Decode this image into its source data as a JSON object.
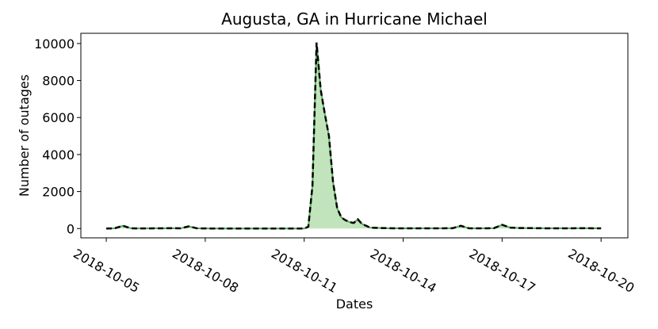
{
  "chart_data": {
    "type": "line",
    "title": "Augusta, GA in Hurricane Michael",
    "x_label": "Dates",
    "y_label": "Number of outages",
    "x": [
      "2018-10-05T00:00",
      "2018-10-05T06:00",
      "2018-10-05T12:00",
      "2018-10-05T18:00",
      "2018-10-06T00:00",
      "2018-10-06T12:00",
      "2018-10-07T00:00",
      "2018-10-07T06:00",
      "2018-10-07T12:00",
      "2018-10-07T18:00",
      "2018-10-08T00:00",
      "2018-10-08T12:00",
      "2018-10-09T00:00",
      "2018-10-09T12:00",
      "2018-10-10T00:00",
      "2018-10-10T12:00",
      "2018-10-11T00:00",
      "2018-10-11T03:00",
      "2018-10-11T06:00",
      "2018-10-11T09:00",
      "2018-10-11T12:00",
      "2018-10-11T15:00",
      "2018-10-11T18:00",
      "2018-10-11T21:00",
      "2018-10-12T00:00",
      "2018-10-12T03:00",
      "2018-10-12T06:00",
      "2018-10-12T09:00",
      "2018-10-12T12:00",
      "2018-10-12T15:00",
      "2018-10-12T18:00",
      "2018-10-12T21:00",
      "2018-10-13T00:00",
      "2018-10-13T12:00",
      "2018-10-14T00:00",
      "2018-10-14T12:00",
      "2018-10-15T00:00",
      "2018-10-15T12:00",
      "2018-10-15T18:00",
      "2018-10-16T00:00",
      "2018-10-16T12:00",
      "2018-10-16T18:00",
      "2018-10-17T00:00",
      "2018-10-17T06:00",
      "2018-10-17T12:00",
      "2018-10-18T00:00",
      "2018-10-18T12:00",
      "2018-10-19T00:00",
      "2018-10-19T12:00",
      "2018-10-20T00:00"
    ],
    "series": [
      {
        "color": "#000000",
        "fill_color": "#a8d8a0",
        "edge_color": "#4caf50",
        "values": [
          0,
          10,
          150,
          10,
          5,
          10,
          20,
          10,
          120,
          10,
          5,
          0,
          0,
          0,
          0,
          0,
          0,
          100,
          2300,
          10050,
          7500,
          6200,
          5000,
          2500,
          1100,
          600,
          450,
          350,
          300,
          500,
          250,
          150,
          50,
          20,
          10,
          10,
          10,
          20,
          150,
          10,
          10,
          20,
          200,
          50,
          30,
          20,
          10,
          10,
          20,
          10
        ]
      }
    ],
    "xlim": [
      "2018-10-04T05:30",
      "2018-10-20T19:30"
    ],
    "xticks": [
      "2018-10-05",
      "2018-10-08",
      "2018-10-11",
      "2018-10-14",
      "2018-10-17",
      "2018-10-20"
    ],
    "ylim": [
      -502,
      10552
    ],
    "yticks": [
      0,
      2000,
      4000,
      6000,
      8000,
      10000
    ],
    "grid": false
  }
}
